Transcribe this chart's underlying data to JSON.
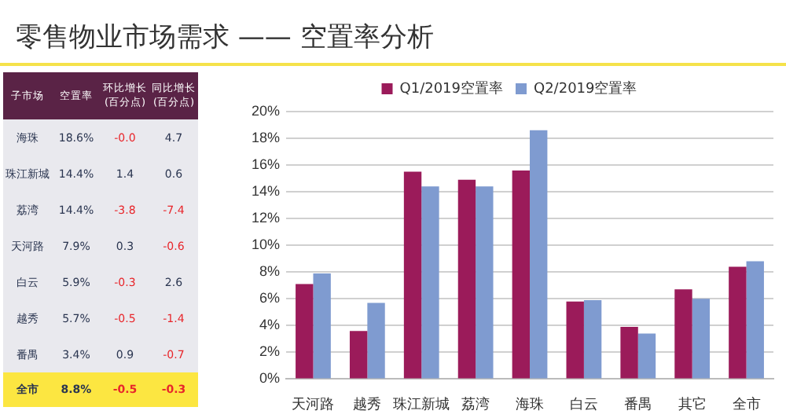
{
  "chart_data": [
    {
      "type": "heatmap",
      "title": "零售物业市场需求 —— 空置率分析",
      "ylabel": "子市场",
      "categories": [
        "空置率",
        "环比增长\n(百分点)",
        "同比增长\n(百分点)"
      ],
      "y_categories": [
        "海珠",
        "珠江新城",
        "荔湾",
        "天河路",
        "白云",
        "越秀",
        "番禺",
        "全市"
      ],
      "cells": [
        [
          18.6,
          -0.0,
          4.7
        ],
        [
          14.4,
          1.4,
          0.6
        ],
        [
          14.4,
          -3.8,
          -7.4
        ],
        [
          7.9,
          0.3,
          -0.6
        ],
        [
          5.9,
          -0.3,
          2.6
        ],
        [
          5.7,
          -0.5,
          -1.4
        ],
        [
          3.4,
          0.9,
          -0.7
        ],
        [
          8.8,
          -0.5,
          -0.3
        ]
      ],
      "cell_labels": [
        [
          "18.6%",
          "-0.0",
          "4.7"
        ],
        [
          "14.4%",
          "1.4",
          "0.6"
        ],
        [
          "14.4%",
          "-3.8",
          "-7.4"
        ],
        [
          "7.9%",
          "0.3",
          "-0.6"
        ],
        [
          "5.9%",
          "-0.3",
          "2.6"
        ],
        [
          "5.7%",
          "-0.5",
          "-1.4"
        ],
        [
          "3.4%",
          "0.9",
          "-0.7"
        ],
        [
          "8.8%",
          "-0.5",
          "-0.3"
        ]
      ]
    },
    {
      "type": "bar",
      "categories": [
        "天河路",
        "越秀",
        "珠江新城",
        "荔湾",
        "海珠",
        "白云",
        "番禺",
        "其它",
        "全市"
      ],
      "series": [
        {
          "name": "Q1/2019空置率",
          "color": "#9b1b5a",
          "values": [
            7.1,
            3.6,
            15.5,
            14.9,
            15.6,
            5.8,
            3.9,
            6.7,
            8.4
          ]
        },
        {
          "name": "Q2/2019空置率",
          "color": "#7f9bd0",
          "values": [
            7.9,
            5.7,
            14.4,
            14.4,
            18.6,
            5.9,
            3.4,
            6.0,
            8.8
          ]
        }
      ],
      "ylim": [
        0,
        20
      ],
      "yticks": [
        {
          "value": 0,
          "label": "0%"
        },
        {
          "value": 2,
          "label": "2%"
        },
        {
          "value": 4,
          "label": "4%"
        },
        {
          "value": 6,
          "label": "6%"
        },
        {
          "value": 8,
          "label": "8%"
        },
        {
          "value": 10,
          "label": "10%"
        },
        {
          "value": 12,
          "label": "12%"
        },
        {
          "value": 14,
          "label": "14%"
        },
        {
          "value": 16,
          "label": "16%"
        },
        {
          "value": 18,
          "label": "18%"
        },
        {
          "value": 20,
          "label": "20%"
        }
      ],
      "grid": "y",
      "legend": "top"
    }
  ]
}
